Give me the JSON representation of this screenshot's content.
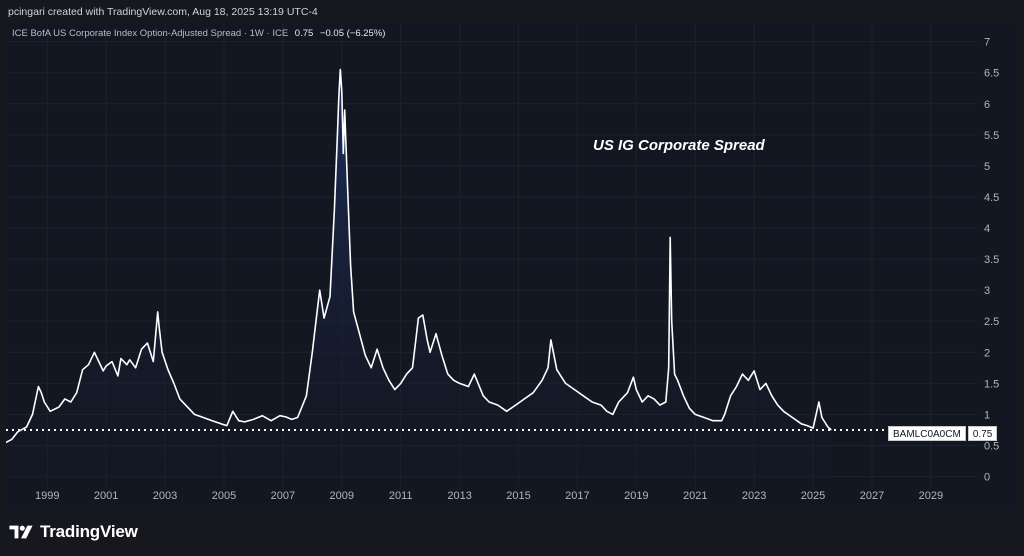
{
  "header": {
    "text": "pcingari created with TradingView.com, Aug 18, 2025 13:19 UTC-4"
  },
  "legend": {
    "title": "ICE BofA US Corporate Index Option-Adjusted Spread · 1W · ICE",
    "value": "0.75",
    "change": "−0.05 (−6.25%)"
  },
  "annotation": "US IG Corporate Spread",
  "price_tag": {
    "symbol": "BAMLC0A0CM",
    "price": "0.75"
  },
  "footer": {
    "brand": "TradingView"
  },
  "colors": {
    "background": "#131722",
    "line": "#ffffff",
    "area_top": "#1f3163",
    "area_bottom": "#131722",
    "grid": "#1e222d",
    "axis_text": "#b2b5be"
  },
  "icons": [
    "tradingview-logo-icon"
  ],
  "chart_data": {
    "type": "area",
    "title": "US IG Corporate Spread",
    "xlabel": "",
    "ylabel": "",
    "xlim": [
      1997.6,
      2030.6
    ],
    "ylim": [
      -0.2,
      7.3
    ],
    "x_ticks": [
      "1999",
      "2001",
      "2003",
      "2005",
      "2007",
      "2009",
      "2011",
      "2013",
      "2015",
      "2017",
      "2019",
      "2021",
      "2023",
      "2025",
      "2027",
      "2029"
    ],
    "y_ticks": [
      "0",
      "0.5",
      "1",
      "1.5",
      "2",
      "2.5",
      "3",
      "3.5",
      "4",
      "4.5",
      "5",
      "5.5",
      "6",
      "6.5",
      "7"
    ],
    "grid": true,
    "reference_line": {
      "value": 0.75,
      "style": "dotted"
    },
    "series": [
      {
        "x": [
          1997.6,
          1997.8,
          1998.0,
          1998.3,
          1998.5,
          1998.7,
          1998.8,
          1998.9,
          1999.1,
          1999.4,
          1999.6,
          1999.8,
          2000.0,
          2000.2,
          2000.4,
          2000.6,
          2000.9,
          2001.0,
          2001.2,
          2001.4,
          2001.5,
          2001.7,
          2001.8,
          2002.0,
          2002.2,
          2002.4,
          2002.6,
          2002.75,
          2002.8,
          2002.9,
          2003.1,
          2003.3,
          2003.5,
          2003.8,
          2004.0,
          2004.3,
          2004.6,
          2004.9,
          2005.1,
          2005.3,
          2005.5,
          2005.7,
          2006.0,
          2006.3,
          2006.6,
          2006.9,
          2007.1,
          2007.3,
          2007.5,
          2007.8,
          2008.0,
          2008.15,
          2008.25,
          2008.4,
          2008.6,
          2008.75,
          2008.85,
          2008.9,
          2008.95,
          2009.0,
          2009.05,
          2009.1,
          2009.2,
          2009.3,
          2009.4,
          2009.6,
          2009.8,
          2010.0,
          2010.2,
          2010.4,
          2010.6,
          2010.8,
          2011.0,
          2011.2,
          2011.4,
          2011.6,
          2011.75,
          2011.9,
          2012.0,
          2012.2,
          2012.4,
          2012.6,
          2012.8,
          2013.0,
          2013.3,
          2013.5,
          2013.8,
          2014.0,
          2014.3,
          2014.6,
          2014.9,
          2015.2,
          2015.5,
          2015.8,
          2016.0,
          2016.1,
          2016.3,
          2016.6,
          2016.9,
          2017.2,
          2017.5,
          2017.8,
          2018.0,
          2018.2,
          2018.4,
          2018.7,
          2018.9,
          2019.0,
          2019.2,
          2019.4,
          2019.6,
          2019.8,
          2020.0,
          2020.1,
          2020.15,
          2020.2,
          2020.3,
          2020.4,
          2020.6,
          2020.8,
          2021.0,
          2021.3,
          2021.6,
          2021.9,
          2022.0,
          2022.2,
          2022.4,
          2022.6,
          2022.8,
          2023.0,
          2023.2,
          2023.4,
          2023.6,
          2023.8,
          2024.0,
          2024.3,
          2024.6,
          2024.8,
          2025.0,
          2025.2,
          2025.3,
          2025.5,
          2025.62
        ],
        "values": [
          0.55,
          0.6,
          0.72,
          0.8,
          1.0,
          1.45,
          1.35,
          1.2,
          1.05,
          1.12,
          1.25,
          1.2,
          1.35,
          1.72,
          1.8,
          2.0,
          1.7,
          1.78,
          1.85,
          1.62,
          1.9,
          1.8,
          1.88,
          1.75,
          2.05,
          2.15,
          1.85,
          2.65,
          2.4,
          2.0,
          1.72,
          1.5,
          1.25,
          1.1,
          1.0,
          0.95,
          0.9,
          0.85,
          0.82,
          1.05,
          0.9,
          0.88,
          0.92,
          0.98,
          0.9,
          0.98,
          0.96,
          0.92,
          0.95,
          1.3,
          2.0,
          2.6,
          3.0,
          2.55,
          2.9,
          4.3,
          5.5,
          6.1,
          6.55,
          6.2,
          5.2,
          5.9,
          4.6,
          3.4,
          2.65,
          2.3,
          1.95,
          1.75,
          2.05,
          1.75,
          1.55,
          1.4,
          1.5,
          1.65,
          1.75,
          2.55,
          2.6,
          2.2,
          2.0,
          2.3,
          1.95,
          1.65,
          1.55,
          1.5,
          1.45,
          1.65,
          1.3,
          1.2,
          1.15,
          1.05,
          1.15,
          1.25,
          1.35,
          1.55,
          1.75,
          2.2,
          1.72,
          1.5,
          1.4,
          1.3,
          1.2,
          1.15,
          1.05,
          1.0,
          1.2,
          1.35,
          1.6,
          1.4,
          1.2,
          1.3,
          1.25,
          1.15,
          1.2,
          1.75,
          3.85,
          2.5,
          1.65,
          1.55,
          1.3,
          1.1,
          1.0,
          0.95,
          0.9,
          0.9,
          1.0,
          1.3,
          1.45,
          1.65,
          1.55,
          1.7,
          1.4,
          1.5,
          1.3,
          1.15,
          1.05,
          0.95,
          0.85,
          0.82,
          0.78,
          1.2,
          0.95,
          0.8,
          0.75
        ]
      }
    ]
  }
}
